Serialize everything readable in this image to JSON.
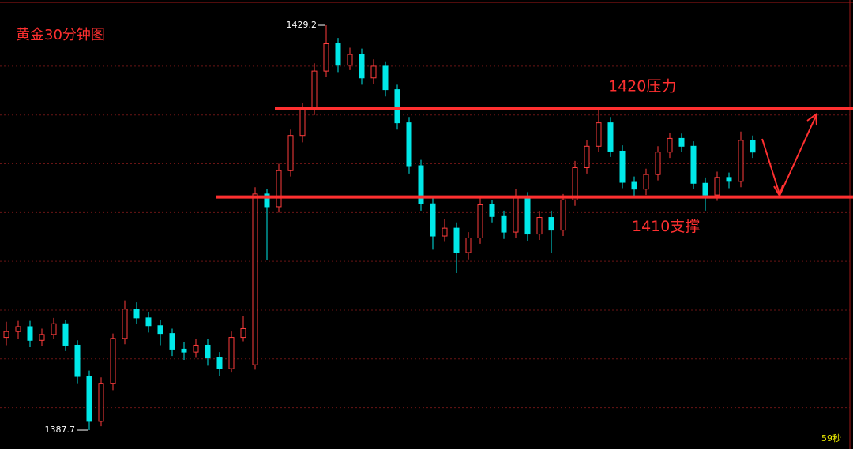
{
  "chart_data": {
    "type": "candlestick",
    "title": "黄金30分钟图",
    "open": [
      1397.2,
      1397.8,
      1398.3,
      1396.9,
      1397.5,
      1398.6,
      1396.4,
      1393.2,
      1388.6,
      1392.5,
      1397.1,
      1400.1,
      1399.2,
      1398.4,
      1397.6,
      1396.0,
      1395.7,
      1396.4,
      1395.1,
      1394.0,
      1397.2,
      1394.4,
      1411.9,
      1410.6,
      1414.3,
      1417.9,
      1420.6,
      1424.5,
      1427.3,
      1425.1,
      1426.2,
      1423.8,
      1425.0,
      1422.6,
      1419.2,
      1414.8,
      1410.9,
      1407.6,
      1408.4,
      1405.9,
      1407.4,
      1410.8,
      1409.6,
      1408.0,
      1411.6,
      1407.8,
      1409.5,
      1408.2,
      1411.3,
      1414.6,
      1416.8,
      1419.2,
      1416.3,
      1413.1,
      1412.4,
      1413.9,
      1416.2,
      1417.6,
      1416.8,
      1413.0,
      1411.8,
      1413.6,
      1413.2,
      1417.4
    ],
    "high": [
      1398.8,
      1398.9,
      1398.9,
      1398.1,
      1399.2,
      1399.0,
      1396.9,
      1393.8,
      1393.1,
      1397.6,
      1401.0,
      1400.8,
      1399.8,
      1399.0,
      1398.1,
      1396.7,
      1397.0,
      1397.0,
      1395.7,
      1397.8,
      1399.4,
      1412.6,
      1412.4,
      1415.0,
      1418.5,
      1421.2,
      1425.3,
      1429.2,
      1427.9,
      1426.9,
      1426.8,
      1425.7,
      1425.5,
      1423.1,
      1419.8,
      1415.4,
      1411.5,
      1409.3,
      1409.0,
      1408.0,
      1411.5,
      1411.3,
      1410.2,
      1412.4,
      1412.1,
      1410.1,
      1410.2,
      1411.9,
      1415.3,
      1417.4,
      1420.8,
      1419.8,
      1416.9,
      1413.7,
      1414.5,
      1416.8,
      1418.2,
      1418.1,
      1417.3,
      1413.6,
      1414.2,
      1414.1,
      1418.3,
      1417.9
    ],
    "low": [
      1396.4,
      1397.0,
      1396.2,
      1396.3,
      1397.0,
      1395.8,
      1392.5,
      1387.7,
      1388.1,
      1391.8,
      1396.5,
      1398.6,
      1397.7,
      1396.4,
      1395.3,
      1394.9,
      1395.1,
      1394.3,
      1393.2,
      1393.6,
      1396.8,
      1393.9,
      1405.1,
      1410.0,
      1413.7,
      1417.2,
      1420.0,
      1423.9,
      1424.4,
      1424.6,
      1423.1,
      1423.2,
      1421.9,
      1418.5,
      1414.0,
      1410.2,
      1406.2,
      1407.0,
      1403.8,
      1405.2,
      1406.8,
      1409.0,
      1407.3,
      1407.4,
      1407.1,
      1407.2,
      1405.9,
      1407.6,
      1410.7,
      1414.0,
      1416.2,
      1415.7,
      1412.5,
      1411.7,
      1411.8,
      1413.3,
      1415.6,
      1416.2,
      1412.4,
      1410.2,
      1411.2,
      1412.5,
      1412.6,
      1415.6
    ],
    "close": [
      1397.8,
      1398.3,
      1396.9,
      1397.5,
      1398.6,
      1396.4,
      1393.2,
      1388.6,
      1392.5,
      1397.1,
      1400.1,
      1399.2,
      1398.4,
      1397.6,
      1396.0,
      1395.7,
      1396.4,
      1395.1,
      1394.0,
      1397.2,
      1398.1,
      1411.9,
      1410.6,
      1414.3,
      1417.9,
      1420.6,
      1424.5,
      1427.3,
      1425.1,
      1426.2,
      1423.8,
      1425.0,
      1422.6,
      1419.2,
      1414.8,
      1410.9,
      1407.6,
      1408.4,
      1405.9,
      1407.4,
      1410.8,
      1409.6,
      1408.0,
      1411.6,
      1407.8,
      1409.5,
      1408.2,
      1411.3,
      1414.6,
      1416.8,
      1419.2,
      1416.3,
      1413.1,
      1412.4,
      1413.9,
      1416.2,
      1417.6,
      1416.8,
      1413.0,
      1411.8,
      1413.6,
      1413.2,
      1417.4,
      1416.2
    ],
    "up_color": "#ff3c3c",
    "down_color": "#00e8e8",
    "ylim": [
      1385.76,
      1431.79
    ],
    "grid_levels": [
      1425,
      1420,
      1415,
      1410,
      1405,
      1400,
      1395,
      1390
    ],
    "max_marker": 1429.2,
    "min_marker": 1387.7,
    "resistance": {
      "label": "1420压力",
      "level": 1420.7
    },
    "support": {
      "label": "1410支撑",
      "level": 1411.6
    },
    "timer": "59秒"
  }
}
